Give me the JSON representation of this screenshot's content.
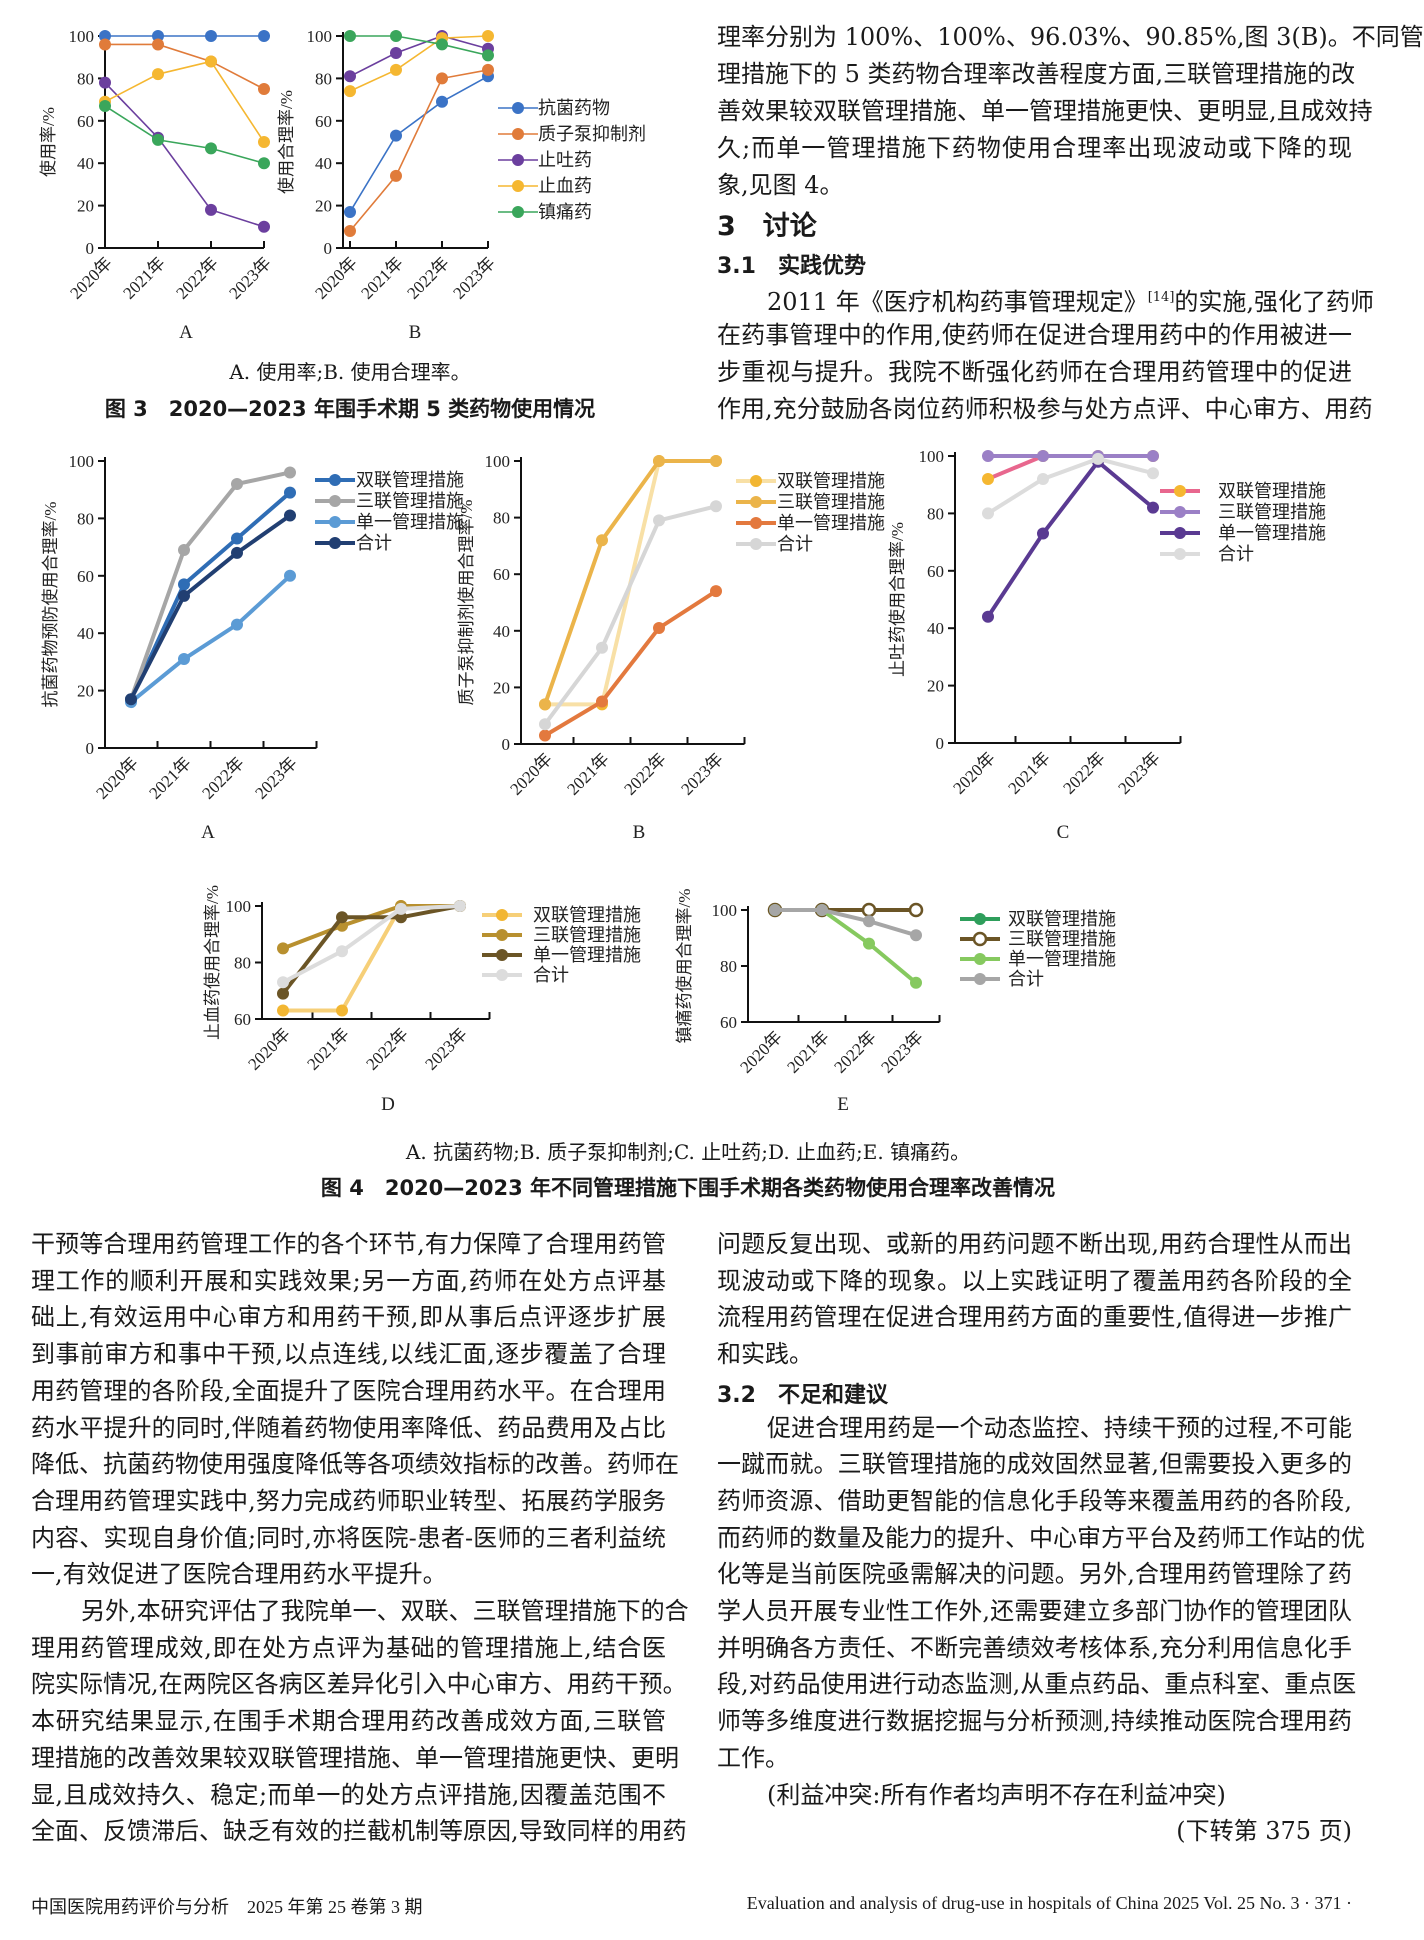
{
  "top_right": {
    "lines": [
      "理率分别为 100%、100%、96.03%、90.85%,图 3(B)。不同管",
      "理措施下的 5 类药物合理率改善程度方面,三联管理措施的改",
      "善效果较双联管理措施、单一管理措施更快、更明显,且成效持",
      "久;而单一管理措施下药物使用合理率出现波动或下降的现",
      "象,见图 4。"
    ],
    "heading_3": "3　讨论",
    "heading_3_1": "3.1　实践优势",
    "para_first_before": "2011 年《医疗机构药事管理规定》",
    "para_first_ref": "[14]",
    "para_first_after": "的实施,强化了药师",
    "para_lines": [
      "在药事管理中的作用,使药师在促进合理用药中的作用被进一",
      "步重视与提升。我院不断强化药师在合理用药管理中的促进",
      "作用,充分鼓励各岗位药师积极参与处方点评、中心审方、用药"
    ]
  },
  "figure3": {
    "subcaption": "A. 使用率;B. 使用合理率。",
    "title": "图 3　2020—2023 年围手术期 5 类药物使用情况"
  },
  "figure4": {
    "subcaption": "A. 抗菌药物;B. 质子泵抑制剂;C. 止吐药;D. 止血药;E. 镇痛药。",
    "title": "图 4　2020—2023 年不同管理措施下围手术期各类药物使用合理率改善情况"
  },
  "chart_data": [
    {
      "type": "line",
      "panel": "A",
      "ylabel": "使用率/%",
      "categories": [
        "2020年",
        "2021年",
        "2022年",
        "2023年"
      ],
      "ylim": [
        0,
        100
      ],
      "yticks": [
        0,
        20,
        40,
        60,
        80,
        100
      ],
      "series": [
        {
          "values": [
            100,
            100,
            100,
            100
          ],
          "color": "#3b73c6"
        },
        {
          "values": [
            96,
            96,
            88,
            75
          ],
          "color": "#e07b3a"
        },
        {
          "values": [
            78,
            52,
            18,
            10
          ],
          "color": "#6b3f9e"
        },
        {
          "values": [
            69,
            82,
            88,
            50
          ],
          "color": "#f5b731"
        },
        {
          "values": [
            67,
            51,
            47,
            40
          ],
          "color": "#3aa65b"
        }
      ]
    },
    {
      "type": "line",
      "panel": "B",
      "ylabel": "使用合理率/%",
      "categories": [
        "2020年",
        "2021年",
        "2022年",
        "2023年"
      ],
      "ylim": [
        0,
        100
      ],
      "yticks": [
        0,
        20,
        40,
        60,
        80,
        100
      ],
      "legend": "right",
      "series": [
        {
          "name": "抗菌药物",
          "values": [
            17,
            53,
            69,
            81
          ],
          "color": "#3b73c6"
        },
        {
          "name": "质子泵抑制剂",
          "values": [
            8,
            34,
            80,
            84
          ],
          "color": "#e07b3a"
        },
        {
          "name": "止吐药",
          "values": [
            81,
            92,
            100,
            94
          ],
          "color": "#6b3f9e"
        },
        {
          "name": "止血药",
          "values": [
            74,
            84,
            99,
            100
          ],
          "color": "#f5b731"
        },
        {
          "name": "镇痛药",
          "values": [
            100,
            100,
            96.03,
            90.85
          ],
          "color": "#3aa65b"
        }
      ]
    },
    {
      "type": "line",
      "panel": "A",
      "ylabel": "抗菌药物预防使用合理率/%",
      "categories": [
        "2020年",
        "2021年",
        "2022年",
        "2023年"
      ],
      "ylim": [
        0,
        100
      ],
      "yticks": [
        0,
        20,
        40,
        60,
        80,
        100
      ],
      "legend": "top-right",
      "series": [
        {
          "name": "双联管理措施",
          "values": [
            17,
            57,
            73,
            89
          ],
          "color": "#2f6db5"
        },
        {
          "name": "三联管理措施",
          "values": [
            17,
            69,
            92,
            96
          ],
          "color": "#a6a6a6"
        },
        {
          "name": "单一管理措施",
          "values": [
            16,
            31,
            43,
            60
          ],
          "color": "#5b9bd5"
        },
        {
          "name": "合计",
          "values": [
            17,
            53,
            68,
            81
          ],
          "color": "#213f72"
        }
      ]
    },
    {
      "type": "line",
      "panel": "B",
      "ylabel": "质子泵抑制剂使用合理率/%",
      "categories": [
        "2020年",
        "2021年",
        "2022年",
        "2023年"
      ],
      "ylim": [
        0,
        100
      ],
      "yticks": [
        0,
        20,
        40,
        60,
        80,
        100
      ],
      "legend": "top-right",
      "series": [
        {
          "name": "双联管理措施",
          "values": [
            14,
            14,
            100,
            100
          ],
          "color": "#f8e0a6",
          "marker_color": "#f2b632"
        },
        {
          "name": "三联管理措施",
          "values": [
            14,
            72,
            100,
            100
          ],
          "color": "#ebb44a"
        },
        {
          "name": "单一管理措施",
          "values": [
            3,
            15,
            41,
            54
          ],
          "color": "#e3793e"
        },
        {
          "name": "合计",
          "values": [
            7,
            34,
            79,
            84
          ],
          "color": "#d6d6d6"
        }
      ]
    },
    {
      "type": "line",
      "panel": "C",
      "ylabel": "止吐药使用合理率/%",
      "categories": [
        "2020年",
        "2021年",
        "2022年",
        "2023年"
      ],
      "ylim": [
        0,
        100
      ],
      "yticks": [
        0,
        20,
        40,
        60,
        80,
        100
      ],
      "legend": "right",
      "series": [
        {
          "name": "双联管理措施",
          "values": [
            92,
            100,
            100,
            100
          ],
          "color": "#e8678e",
          "marker_color": "#f5b731"
        },
        {
          "name": "三联管理措施",
          "values": [
            100,
            100,
            100,
            100
          ],
          "color": "#9b80c6"
        },
        {
          "name": "单一管理措施",
          "values": [
            44,
            73,
            98,
            82
          ],
          "color": "#5a3a92"
        },
        {
          "name": "合计",
          "values": [
            80,
            92,
            99,
            94
          ],
          "color": "#dcdcdc"
        }
      ]
    },
    {
      "type": "line",
      "panel": "D",
      "ylabel": "止血药使用合理率/%",
      "categories": [
        "2020年",
        "2021年",
        "2022年",
        "2023年"
      ],
      "ylim": [
        60,
        100
      ],
      "yticks": [
        60,
        80,
        100
      ],
      "legend": "right",
      "series": [
        {
          "name": "双联管理措施",
          "values": [
            63,
            63,
            100,
            100
          ],
          "color": "#f6cf78",
          "marker_color": "#f2b632"
        },
        {
          "name": "三联管理措施",
          "values": [
            85,
            93,
            100,
            100
          ],
          "color": "#b8902f"
        },
        {
          "name": "单一管理措施",
          "values": [
            69,
            96,
            96,
            100
          ],
          "color": "#6b5526"
        },
        {
          "name": "合计",
          "values": [
            73,
            84,
            99,
            100
          ],
          "color": "#dcdcdc"
        }
      ]
    },
    {
      "type": "line",
      "panel": "E",
      "ylabel": "镇痛药使用合理率/%",
      "categories": [
        "2020年",
        "2021年",
        "2022年",
        "2023年"
      ],
      "ylim": [
        60,
        100
      ],
      "yticks": [
        60,
        80,
        100
      ],
      "legend": "right",
      "series": [
        {
          "name": "双联管理措施",
          "values": [
            100,
            100,
            100,
            100
          ],
          "color": "#2e9e5b"
        },
        {
          "name": "三联管理措施",
          "values": [
            100,
            100,
            100,
            100
          ],
          "color": "#6b5526",
          "hollow": true
        },
        {
          "name": "单一管理措施",
          "values": [
            100,
            100,
            88,
            74
          ],
          "color": "#86c95f"
        },
        {
          "name": "合计",
          "values": [
            100,
            100,
            96,
            91
          ],
          "color": "#a6a6a6"
        }
      ]
    }
  ],
  "body": {
    "left_lines": [
      "干预等合理用药管理工作的各个环节,有力保障了合理用药管",
      "理工作的顺利开展和实践效果;另一方面,药师在处方点评基",
      "础上,有效运用中心审方和用药干预,即从事后点评逐步扩展",
      "到事前审方和事中干预,以点连线,以线汇面,逐步覆盖了合理",
      "用药管理的各阶段,全面提升了医院合理用药水平。在合理用",
      "药水平提升的同时,伴随着药物使用率降低、药品费用及占比",
      "降低、抗菌药物使用强度降低等各项绩效指标的改善。药师在",
      "合理用药管理实践中,努力完成药师职业转型、拓展药学服务",
      "内容、实现自身价值;同时,亦将医院-患者-医师的三者利益统",
      "一,有效促进了医院合理用药水平提升。",
      "另外,本研究评估了我院单一、双联、三联管理措施下的合",
      "理用药管理成效,即在处方点评为基础的管理措施上,结合医",
      "院实际情况,在两院区各病区差异化引入中心审方、用药干预。",
      "本研究结果显示,在围手术期合理用药改善成效方面,三联管",
      "理措施的改善效果较双联管理措施、单一管理措施更快、更明",
      "显,且成效持久、稳定;而单一的处方点评措施,因覆盖范围不",
      "全面、反馈滞后、缺乏有效的拦截机制等原因,导致同样的用药"
    ],
    "right_lines_a": [
      "问题反复出现、或新的用药问题不断出现,用药合理性从而出",
      "现波动或下降的现象。以上实践证明了覆盖用药各阶段的全",
      "流程用药管理在促进合理用药方面的重要性,值得进一步推广",
      "和实践。"
    ],
    "heading_3_2": "3.2　不足和建议",
    "right_lines_b": [
      "促进合理用药是一个动态监控、持续干预的过程,不可能",
      "一蹴而就。三联管理措施的成效固然显著,但需要投入更多的",
      "药师资源、借助更智能的信息化手段等来覆盖用药的各阶段,",
      "而药师的数量及能力的提升、中心审方平台及药师工作站的优",
      "化等是当前医院亟需解决的问题。另外,合理用药管理除了药",
      "学人员开展专业性工作外,还需要建立多部门协作的管理团队",
      "并明确各方责任、不断完善绩效考核体系,充分利用信息化手",
      "段,对药品使用进行动态监测,从重点药品、重点科室、重点医",
      "师等多维度进行数据挖掘与分析预测,持续推动医院合理用药",
      "工作。"
    ],
    "conflict": "(利益冲突:所有作者均声明不存在利益冲突)",
    "continued": "(下转第 375 页)"
  },
  "footer": {
    "journal_cn": "中国医院用药评价与分析　2025 年第 25 卷第 3 期",
    "journal_en": "Evaluation and analysis of drug-use in hospitals of China 2025 Vol. 25 No. 3 · 371 ·"
  }
}
